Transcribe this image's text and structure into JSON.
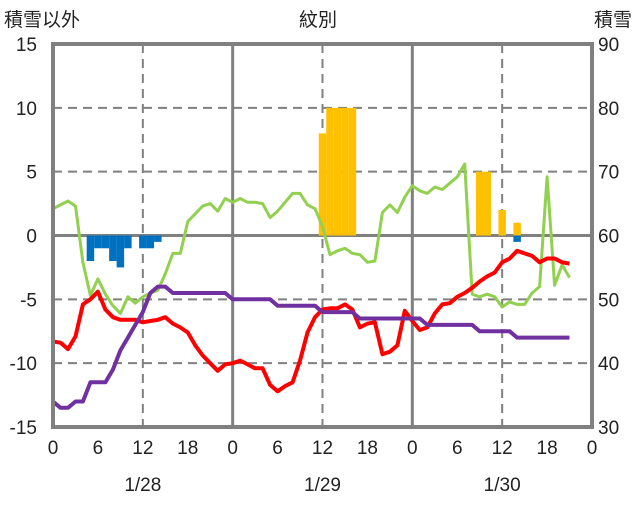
{
  "chart_data": {
    "type": "line",
    "title": "紋別",
    "ylabel_left": "積雪以外",
    "ylabel_right": "積雪",
    "xlim": [
      0,
      72
    ],
    "ylim_left": [
      -15,
      15
    ],
    "ylim_right": [
      30,
      90
    ],
    "grid": true,
    "x_ticks": [
      "0",
      "6",
      "12",
      "18",
      "0",
      "6",
      "12",
      "18",
      "0",
      "6",
      "12",
      "18",
      "0"
    ],
    "x_tick_hours": [
      0,
      6,
      12,
      18,
      24,
      30,
      36,
      42,
      48,
      54,
      60,
      66,
      72
    ],
    "date_labels": [
      {
        "label": "1/28",
        "hour": 12
      },
      {
        "label": "1/29",
        "hour": 36
      },
      {
        "label": "1/30",
        "hour": 60
      }
    ],
    "y_ticks_left": [
      "15",
      "10",
      "5",
      "0",
      "-5",
      "-10",
      "-15"
    ],
    "y_ticks_right": [
      "90",
      "80",
      "70",
      "60",
      "50",
      "40",
      "30"
    ],
    "bars": [
      {
        "hour": 5,
        "value": -2,
        "color": "#0070C0"
      },
      {
        "hour": 6,
        "value": -1,
        "color": "#0070C0"
      },
      {
        "hour": 7,
        "value": -1,
        "color": "#0070C0"
      },
      {
        "hour": 8,
        "value": -2,
        "color": "#0070C0"
      },
      {
        "hour": 9,
        "value": -2.5,
        "color": "#0070C0"
      },
      {
        "hour": 10,
        "value": -1,
        "color": "#0070C0"
      },
      {
        "hour": 12,
        "value": -1,
        "color": "#0070C0"
      },
      {
        "hour": 13,
        "value": -1,
        "color": "#0070C0"
      },
      {
        "hour": 14,
        "value": -0.5,
        "color": "#0070C0"
      },
      {
        "hour": 36,
        "value": 8,
        "color": "#FFC000"
      },
      {
        "hour": 37,
        "value": 10,
        "color": "#FFC000"
      },
      {
        "hour": 38,
        "value": 10,
        "color": "#FFC000"
      },
      {
        "hour": 39,
        "value": 10,
        "color": "#FFC000"
      },
      {
        "hour": 40,
        "value": 10,
        "color": "#FFC000"
      },
      {
        "hour": 57,
        "value": 5,
        "color": "#FFC000"
      },
      {
        "hour": 58,
        "value": 5,
        "color": "#FFC000"
      },
      {
        "hour": 60,
        "value": 2,
        "color": "#FFC000"
      },
      {
        "hour": 62,
        "value": 1,
        "color": "#FFC000"
      },
      {
        "hour": 62,
        "value": -0.5,
        "color": "#0070C0"
      }
    ],
    "series": [
      {
        "key": "green",
        "axis": "left",
        "color": "#92D050",
        "values": [
          2.1,
          2.4,
          2.7,
          2.3,
          -2.1,
          -4.7,
          -3.4,
          -4.6,
          -5.5,
          -6.1,
          -4.8,
          -5.3,
          -4.8,
          -4.5,
          -4.3,
          -3.0,
          -1.4,
          -1.4,
          1.1,
          1.7,
          2.3,
          2.5,
          1.9,
          2.9,
          2.6,
          2.9,
          2.6,
          2.6,
          2.5,
          1.4,
          1.9,
          2.6,
          3.3,
          3.3,
          2.4,
          2.1,
          0.7,
          -1.5,
          -1.2,
          -1.0,
          -1.4,
          -1.5,
          -2.1,
          -2.0,
          1.8,
          2.4,
          1.8,
          3.0,
          3.9,
          3.5,
          3.3,
          3.8,
          3.6,
          4.1,
          4.6,
          5.6,
          -4.6,
          -4.8,
          -4.6,
          -4.8,
          -5.6,
          -5.2,
          -5.4,
          -5.4,
          -4.5,
          -4.0,
          4.6,
          -3.9,
          -2.3,
          -3.3
        ]
      },
      {
        "key": "red",
        "axis": "left",
        "color": "#FF0000",
        "values": [
          -8.3,
          -8.4,
          -8.9,
          -7.9,
          -5.4,
          -5.0,
          -4.4,
          -5.8,
          -6.4,
          -6.6,
          -6.6,
          -6.6,
          -6.8,
          -6.7,
          -6.6,
          -6.4,
          -6.9,
          -7.2,
          -7.6,
          -8.6,
          -9.4,
          -10.0,
          -10.6,
          -10.1,
          -10.0,
          -9.8,
          -10.1,
          -10.4,
          -10.4,
          -11.7,
          -12.2,
          -11.8,
          -11.5,
          -9.8,
          -7.6,
          -6.4,
          -5.8,
          -5.7,
          -5.7,
          -5.4,
          -5.8,
          -7.2,
          -6.9,
          -6.8,
          -9.3,
          -9.1,
          -8.6,
          -5.9,
          -6.7,
          -7.4,
          -7.2,
          -6.1,
          -5.4,
          -5.3,
          -4.8,
          -4.5,
          -4.1,
          -3.6,
          -3.2,
          -2.9,
          -2.1,
          -1.8,
          -1.2,
          -1.4,
          -1.6,
          -2.1,
          -1.8,
          -1.8,
          -2.1,
          -2.2
        ]
      },
      {
        "key": "purple",
        "axis": "right",
        "color": "#7030A0",
        "values": [
          34,
          33,
          33,
          34,
          34,
          37,
          37,
          37,
          39,
          42,
          44,
          46,
          48,
          51,
          52,
          52,
          51,
          51,
          51,
          51,
          51,
          51,
          51,
          51,
          50,
          50,
          50,
          50,
          50,
          50,
          49,
          49,
          49,
          49,
          49,
          49,
          48,
          48,
          48,
          48,
          48,
          47,
          47,
          47,
          47,
          47,
          47,
          47,
          47,
          47,
          46,
          46,
          46,
          46,
          46,
          46,
          46,
          45,
          45,
          45,
          45,
          45,
          44,
          44,
          44,
          44,
          44,
          44,
          44,
          44
        ]
      }
    ]
  }
}
